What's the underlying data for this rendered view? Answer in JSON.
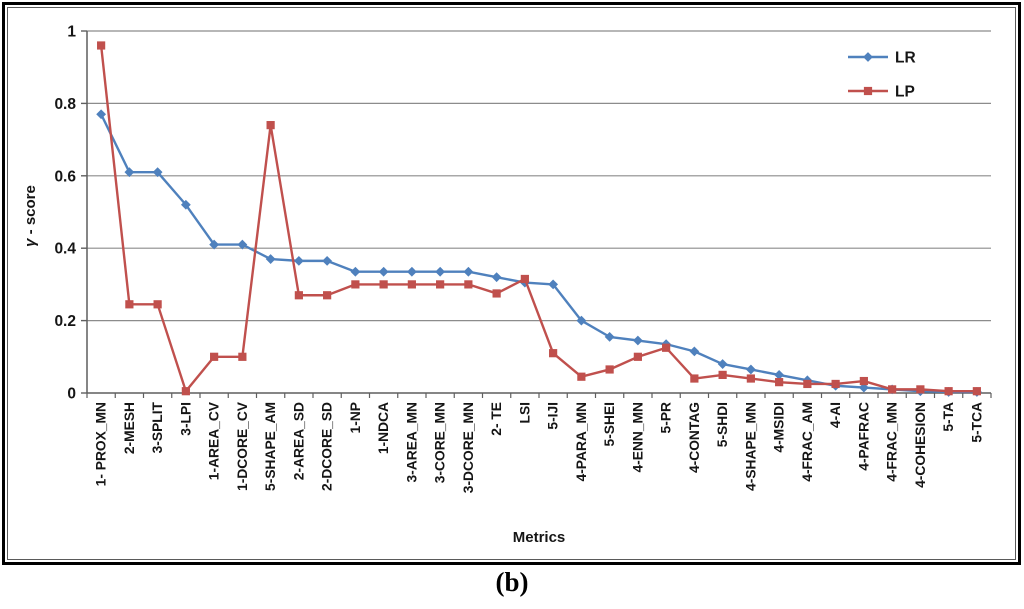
{
  "figure": {
    "caption": "(b)"
  },
  "colors": {
    "gridline": "#8c8c8c",
    "axis": "#5f5f5f",
    "frame_outer": "#000000",
    "frame_inner": "#5a5a5a",
    "text": "#151515",
    "lr_blue": "#4F81BD",
    "lp_red": "#C0504D"
  },
  "chart_data": {
    "type": "line",
    "title": "",
    "xlabel": "Metrics",
    "ylabel": "γ - score",
    "ylim": [
      0,
      1
    ],
    "yticks": [
      0,
      0.2,
      0.4,
      0.6,
      0.8,
      1
    ],
    "ytick_labels": [
      "0",
      "0.2",
      "0.4",
      "0.6",
      "0.8",
      "1"
    ],
    "grid": true,
    "legend_position": "top-right",
    "categories": [
      "1- PROX_MN",
      "2-MESH",
      "3-SPLIT",
      "3-LPI",
      "1-AREA_CV",
      "1-DCORE_CV",
      "5-SHAPE_AM",
      "2-AREA_SD",
      "2-DCORE_SD",
      "1-NP",
      "1-NDCA",
      "3-AREA_MN",
      "3-CORE_MN",
      "3-DCORE_MN",
      "2- TE",
      "LSI",
      "5-IJI",
      "4-PARA_MN",
      "5-SHEI",
      "4-ENN_MN",
      "5-PR",
      "4-CONTAG",
      "5-SHDI",
      "4-SHAPE_MN",
      "4-MSIDI",
      "4-FRAC_AM",
      "4-AI",
      "4-PAFRAC",
      "4-FRAC_MN",
      "4-COHESION",
      "5-TA",
      "5-TCA"
    ],
    "series": [
      {
        "name": "LR",
        "color": "#4F81BD",
        "marker": "diamond",
        "values": [
          0.77,
          0.61,
          0.61,
          0.52,
          0.41,
          0.41,
          0.37,
          0.365,
          0.365,
          0.335,
          0.335,
          0.335,
          0.335,
          0.335,
          0.32,
          0.305,
          0.3,
          0.2,
          0.155,
          0.145,
          0.135,
          0.115,
          0.08,
          0.065,
          0.05,
          0.035,
          0.02,
          0.015,
          0.01,
          0.005,
          0.003,
          0.003
        ]
      },
      {
        "name": "LP",
        "color": "#C0504D",
        "marker": "square",
        "values": [
          0.96,
          0.245,
          0.245,
          0.005,
          0.1,
          0.1,
          0.74,
          0.27,
          0.27,
          0.3,
          0.3,
          0.3,
          0.3,
          0.3,
          0.275,
          0.315,
          0.11,
          0.045,
          0.065,
          0.1,
          0.125,
          0.04,
          0.05,
          0.04,
          0.03,
          0.025,
          0.025,
          0.033,
          0.01,
          0.01,
          0.005,
          0.005
        ]
      }
    ]
  }
}
